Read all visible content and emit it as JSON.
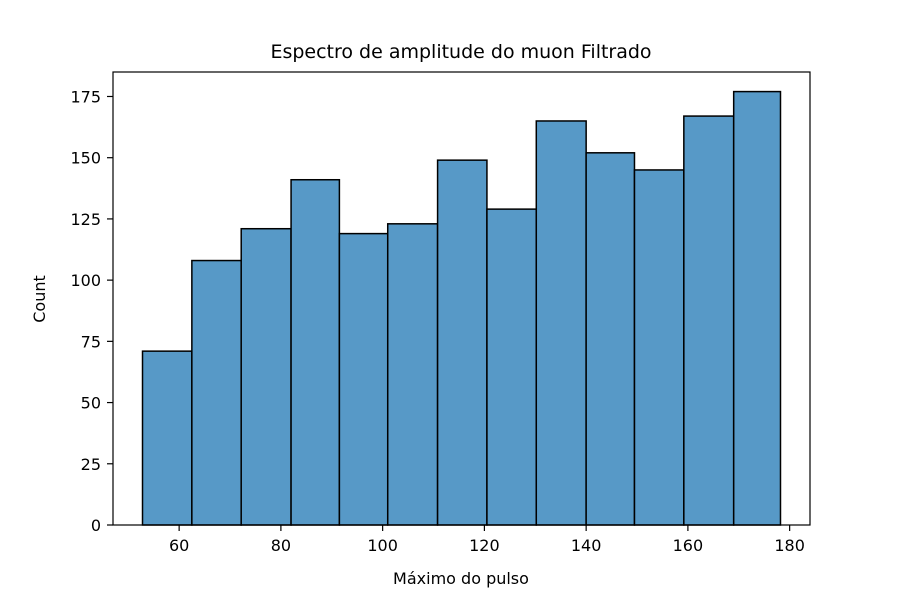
{
  "chart_data": {
    "type": "bar",
    "title": "Espectro de amplitude do muon Filtrado",
    "xlabel": "Máximo do pulso",
    "ylabel": "Count",
    "bin_edges": [
      52.8,
      62.5,
      72.2,
      82.0,
      91.5,
      101.0,
      110.8,
      120.5,
      130.2,
      140.0,
      149.5,
      159.2,
      169.0,
      178.2
    ],
    "values": [
      71,
      108,
      121,
      141,
      119,
      123,
      149,
      129,
      165,
      152,
      145,
      167,
      177
    ],
    "xlim": [
      47,
      184
    ],
    "ylim": [
      0,
      185
    ],
    "xticks": [
      60,
      80,
      100,
      120,
      140,
      160,
      180
    ],
    "yticks": [
      0,
      25,
      50,
      75,
      100,
      125,
      150,
      175
    ],
    "grid": false,
    "bar_color": "#5799c7",
    "edge_color": "#000000"
  }
}
